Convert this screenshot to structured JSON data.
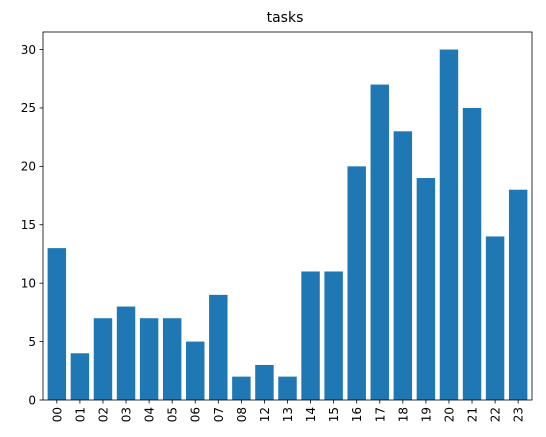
{
  "chart_data": {
    "type": "bar",
    "title": "tasks",
    "xlabel": "",
    "ylabel": "",
    "categories": [
      "00",
      "01",
      "02",
      "03",
      "04",
      "05",
      "06",
      "07",
      "08",
      "12",
      "13",
      "14",
      "15",
      "16",
      "17",
      "18",
      "19",
      "20",
      "21",
      "22",
      "23"
    ],
    "values": [
      13,
      4,
      7,
      8,
      7,
      7,
      5,
      9,
      2,
      3,
      2,
      11,
      11,
      20,
      27,
      23,
      19,
      30,
      25,
      14,
      18
    ],
    "ylim": [
      0,
      31.5
    ],
    "yticks": [
      0,
      5,
      10,
      15,
      20,
      25,
      30
    ],
    "bar_color": "#1f77b4",
    "grid": false,
    "xtick_rotation": "vertical"
  }
}
